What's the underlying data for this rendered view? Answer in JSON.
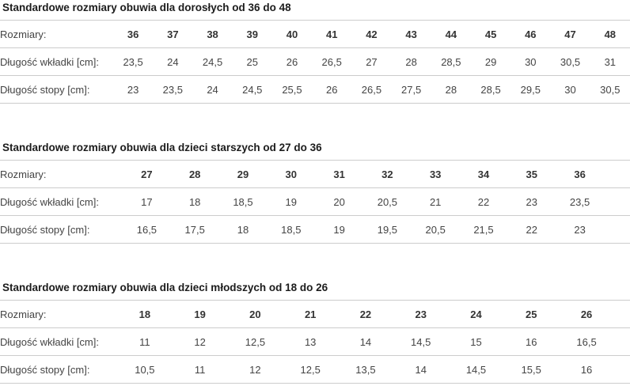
{
  "tables": [
    {
      "title": "Standardowe rozmiary obuwia dla dorosłych od 36 do 48",
      "rows": [
        {
          "label": "Rozmiary:",
          "values": [
            "36",
            "37",
            "38",
            "39",
            "40",
            "41",
            "42",
            "43",
            "44",
            "45",
            "46",
            "47",
            "48"
          ]
        },
        {
          "label": "Długość wkładki [cm]:",
          "values": [
            "23,5",
            "24",
            "24,5",
            "25",
            "26",
            "26,5",
            "27",
            "28",
            "28,5",
            "29",
            "30",
            "30,5",
            "31"
          ]
        },
        {
          "label": "Długość stopy [cm]:",
          "values": [
            "23",
            "23,5",
            "24",
            "24,5",
            "25,5",
            "26",
            "26,5",
            "27,5",
            "28",
            "28,5",
            "29,5",
            "30",
            "30,5"
          ]
        }
      ]
    },
    {
      "title": "Standardowe rozmiary obuwia dla dzieci starszych od 27 do 36",
      "rows": [
        {
          "label": "Rozmiary:",
          "values": [
            "27",
            "28",
            "29",
            "30",
            "31",
            "32",
            "33",
            "34",
            "35",
            "36"
          ]
        },
        {
          "label": "Długość wkładki [cm]:",
          "values": [
            "17",
            "18",
            "18,5",
            "19",
            "20",
            "20,5",
            "21",
            "22",
            "23",
            "23,5"
          ]
        },
        {
          "label": "Długość stopy [cm]:",
          "values": [
            "16,5",
            "17,5",
            "18",
            "18,5",
            "19",
            "19,5",
            "20,5",
            "21,5",
            "22",
            "23"
          ]
        }
      ]
    },
    {
      "title": "Standardowe rozmiary obuwia dla dzieci młodszych od 18 do 26",
      "rows": [
        {
          "label": "Rozmiary:",
          "values": [
            "18",
            "19",
            "20",
            "21",
            "22",
            "23",
            "24",
            "25",
            "26"
          ]
        },
        {
          "label": "Długość wkładki [cm]:",
          "values": [
            "11",
            "12",
            "12,5",
            "13",
            "14",
            "14,5",
            "15",
            "16",
            "16,5"
          ]
        },
        {
          "label": "Długość stopy [cm]:",
          "values": [
            "10,5",
            "11",
            "12",
            "12,5",
            "13,5",
            "14",
            "14,5",
            "15,5",
            "16"
          ]
        }
      ]
    }
  ]
}
